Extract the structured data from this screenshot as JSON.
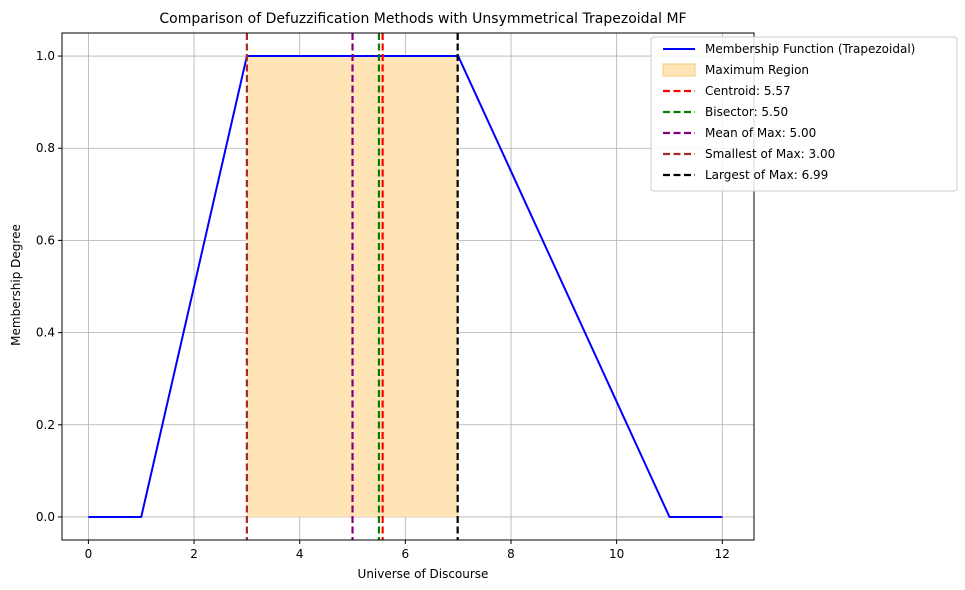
{
  "chart_data": {
    "type": "line",
    "title": "Comparison of Defuzzification Methods with Unsymmetrical Trapezoidal MF",
    "xlabel": "Universe of Discourse",
    "ylabel": "Membership Degree",
    "xlim": [
      -0.5,
      12.6
    ],
    "ylim": [
      -0.05,
      1.05
    ],
    "xticks": [
      0,
      2,
      4,
      6,
      8,
      10,
      12
    ],
    "yticks": [
      0.0,
      0.2,
      0.4,
      0.6,
      0.8,
      1.0
    ],
    "xtick_labels": [
      "0",
      "2",
      "4",
      "6",
      "8",
      "10",
      "12"
    ],
    "ytick_labels": [
      "0.0",
      "0.2",
      "0.4",
      "0.6",
      "0.8",
      "1.0"
    ],
    "grid": true,
    "legend_position": "top-right",
    "series": [
      {
        "name": "Membership Function (Trapezoidal)",
        "color": "#0000ff",
        "x": [
          0,
          1,
          3,
          7,
          11,
          12
        ],
        "y": [
          0,
          0,
          1,
          1,
          0,
          0
        ]
      }
    ],
    "regions": [
      {
        "name": "Maximum Region",
        "color": "#ffe4b5",
        "x_start": 3,
        "x_end": 7,
        "y_start": 0,
        "y_end": 1
      }
    ],
    "vlines": [
      {
        "name": "Centroid: 5.57",
        "x": 5.57,
        "color": "#ff0000"
      },
      {
        "name": "Bisector: 5.50",
        "x": 5.5,
        "color": "#008000"
      },
      {
        "name": "Mean of Max: 5.00",
        "x": 5.0,
        "color": "#800080"
      },
      {
        "name": "Smallest of Max: 3.00",
        "x": 3.0,
        "color": "#a52a2a"
      },
      {
        "name": "Largest of Max: 6.99",
        "x": 6.99,
        "color": "#000000"
      }
    ]
  }
}
